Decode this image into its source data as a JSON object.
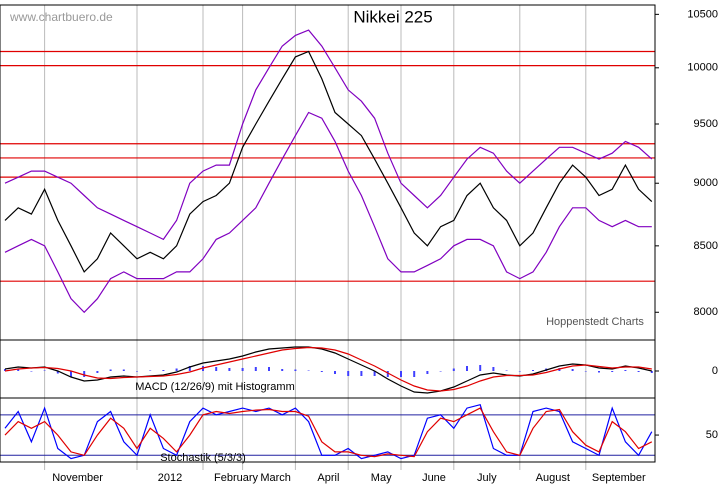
{
  "chart_data": [
    {
      "type": "line",
      "title": "Nikkei 225",
      "watermark": "www.chartbuero.de",
      "source": "Hoppenstedt Charts",
      "log_scale": true,
      "ylim": [
        7800,
        10590
      ],
      "yticks": [
        8000,
        8500,
        9000,
        9500,
        10000,
        10500
      ],
      "series": [
        {
          "color": "#000000",
          "values": [
            8700,
            8800,
            8750,
            8950,
            8700,
            8500,
            8300,
            8400,
            8600,
            8500,
            8400,
            8450,
            8400,
            8500,
            8750,
            8850,
            8900,
            9000,
            9300,
            9500,
            9700,
            9900,
            10100,
            10150,
            9900,
            9600,
            9500,
            9400,
            9200,
            9000,
            8800,
            8600,
            8500,
            8650,
            8700,
            8900,
            9000,
            8800,
            8700,
            8500,
            8600,
            8800,
            9000,
            9150,
            9050,
            8900,
            8950,
            9150,
            8950,
            8850
          ]
        },
        {
          "color": "#8000c0",
          "values": [
            9000,
            9050,
            9100,
            9100,
            9050,
            9000,
            8900,
            8800,
            8750,
            8700,
            8650,
            8600,
            8550,
            8700,
            9000,
            9100,
            9150,
            9150,
            9500,
            9800,
            10000,
            10200,
            10300,
            10350,
            10200,
            10000,
            9800,
            9700,
            9550,
            9250,
            9000,
            8900,
            8800,
            8900,
            9050,
            9200,
            9300,
            9250,
            9100,
            9000,
            9100,
            9200,
            9300,
            9300,
            9250,
            9200,
            9250,
            9350,
            9300,
            9200
          ]
        },
        {
          "color": "#8000c0",
          "values": [
            8450,
            8500,
            8550,
            8500,
            8300,
            8100,
            8000,
            8100,
            8250,
            8300,
            8250,
            8250,
            8250,
            8300,
            8300,
            8400,
            8550,
            8600,
            8700,
            8800,
            9000,
            9200,
            9400,
            9600,
            9550,
            9350,
            9100,
            8900,
            8650,
            8400,
            8300,
            8300,
            8350,
            8400,
            8500,
            8550,
            8550,
            8500,
            8300,
            8250,
            8300,
            8450,
            8650,
            8800,
            8800,
            8700,
            8650,
            8700,
            8650,
            8650
          ]
        }
      ],
      "hlines": [
        10150,
        10020,
        9330,
        9210,
        9050,
        8230
      ],
      "hline_color": "#e00000"
    },
    {
      "type": "line",
      "title": "MACD (12/26/9) mit Histogramm",
      "ylim": [
        -270,
        310
      ],
      "yticks": [
        0
      ],
      "series": [
        {
          "type": "bar",
          "color": "#4040ff",
          "values": [
            20,
            20,
            0,
            5,
            -25,
            -60,
            -60,
            -20,
            15,
            15,
            0,
            5,
            10,
            25,
            50,
            50,
            40,
            30,
            30,
            40,
            40,
            20,
            15,
            5,
            -10,
            -30,
            -50,
            -50,
            -50,
            -60,
            -60,
            -60,
            -30,
            0,
            25,
            50,
            60,
            40,
            5,
            -5,
            10,
            25,
            30,
            20,
            0,
            -15,
            -10,
            10,
            -10,
            -20
          ]
        },
        {
          "color": "#000000",
          "values": [
            20,
            40,
            30,
            40,
            0,
            -60,
            -100,
            -90,
            -60,
            -50,
            -60,
            -50,
            -40,
            -10,
            40,
            80,
            100,
            120,
            150,
            190,
            220,
            230,
            240,
            240,
            220,
            180,
            120,
            60,
            0,
            -80,
            -150,
            -210,
            -220,
            -200,
            -160,
            -100,
            -40,
            -20,
            -40,
            -50,
            -30,
            10,
            50,
            70,
            60,
            30,
            20,
            50,
            30,
            0
          ]
        },
        {
          "color": "#e00000",
          "values": [
            0,
            20,
            30,
            35,
            25,
            0,
            -40,
            -70,
            -75,
            -65,
            -60,
            -55,
            -50,
            -35,
            -10,
            30,
            60,
            90,
            120,
            150,
            180,
            210,
            225,
            235,
            230,
            210,
            170,
            110,
            50,
            -20,
            -90,
            -150,
            -190,
            -200,
            -185,
            -150,
            -100,
            -60,
            -45,
            -45,
            -40,
            -15,
            20,
            50,
            60,
            45,
            30,
            40,
            40,
            20
          ]
        }
      ]
    },
    {
      "type": "line",
      "title": "Stochastik (5/3/3)",
      "ylim": [
        10,
        105
      ],
      "yticks": [
        50
      ],
      "levels": [
        80,
        20
      ],
      "level_color": "#2020a0",
      "categories": [
        null,
        null,
        null,
        null,
        null,
        "November",
        null,
        null,
        null,
        null,
        null,
        null,
        "2012",
        null,
        null,
        null,
        null,
        "February",
        null,
        null,
        "March",
        null,
        null,
        null,
        "April",
        null,
        null,
        null,
        "May",
        null,
        null,
        null,
        "June",
        null,
        null,
        null,
        "July",
        null,
        null,
        null,
        null,
        "August",
        null,
        null,
        null,
        null,
        "September",
        null,
        null,
        null
      ],
      "series": [
        {
          "color": "#0000ff",
          "values": [
            60,
            85,
            40,
            90,
            30,
            15,
            20,
            70,
            85,
            40,
            20,
            80,
            30,
            20,
            70,
            90,
            80,
            85,
            90,
            85,
            90,
            80,
            90,
            70,
            20,
            20,
            30,
            15,
            20,
            25,
            15,
            20,
            75,
            80,
            60,
            90,
            95,
            30,
            20,
            20,
            85,
            90,
            85,
            40,
            30,
            20,
            90,
            40,
            20,
            55
          ]
        },
        {
          "color": "#e00000",
          "values": [
            50,
            70,
            60,
            70,
            50,
            25,
            20,
            50,
            75,
            60,
            30,
            60,
            45,
            25,
            50,
            80,
            85,
            82,
            85,
            87,
            88,
            85,
            85,
            78,
            40,
            25,
            25,
            20,
            18,
            22,
            20,
            18,
            55,
            75,
            70,
            80,
            90,
            55,
            25,
            20,
            60,
            85,
            88,
            55,
            35,
            25,
            70,
            55,
            30,
            40
          ]
        }
      ]
    }
  ]
}
